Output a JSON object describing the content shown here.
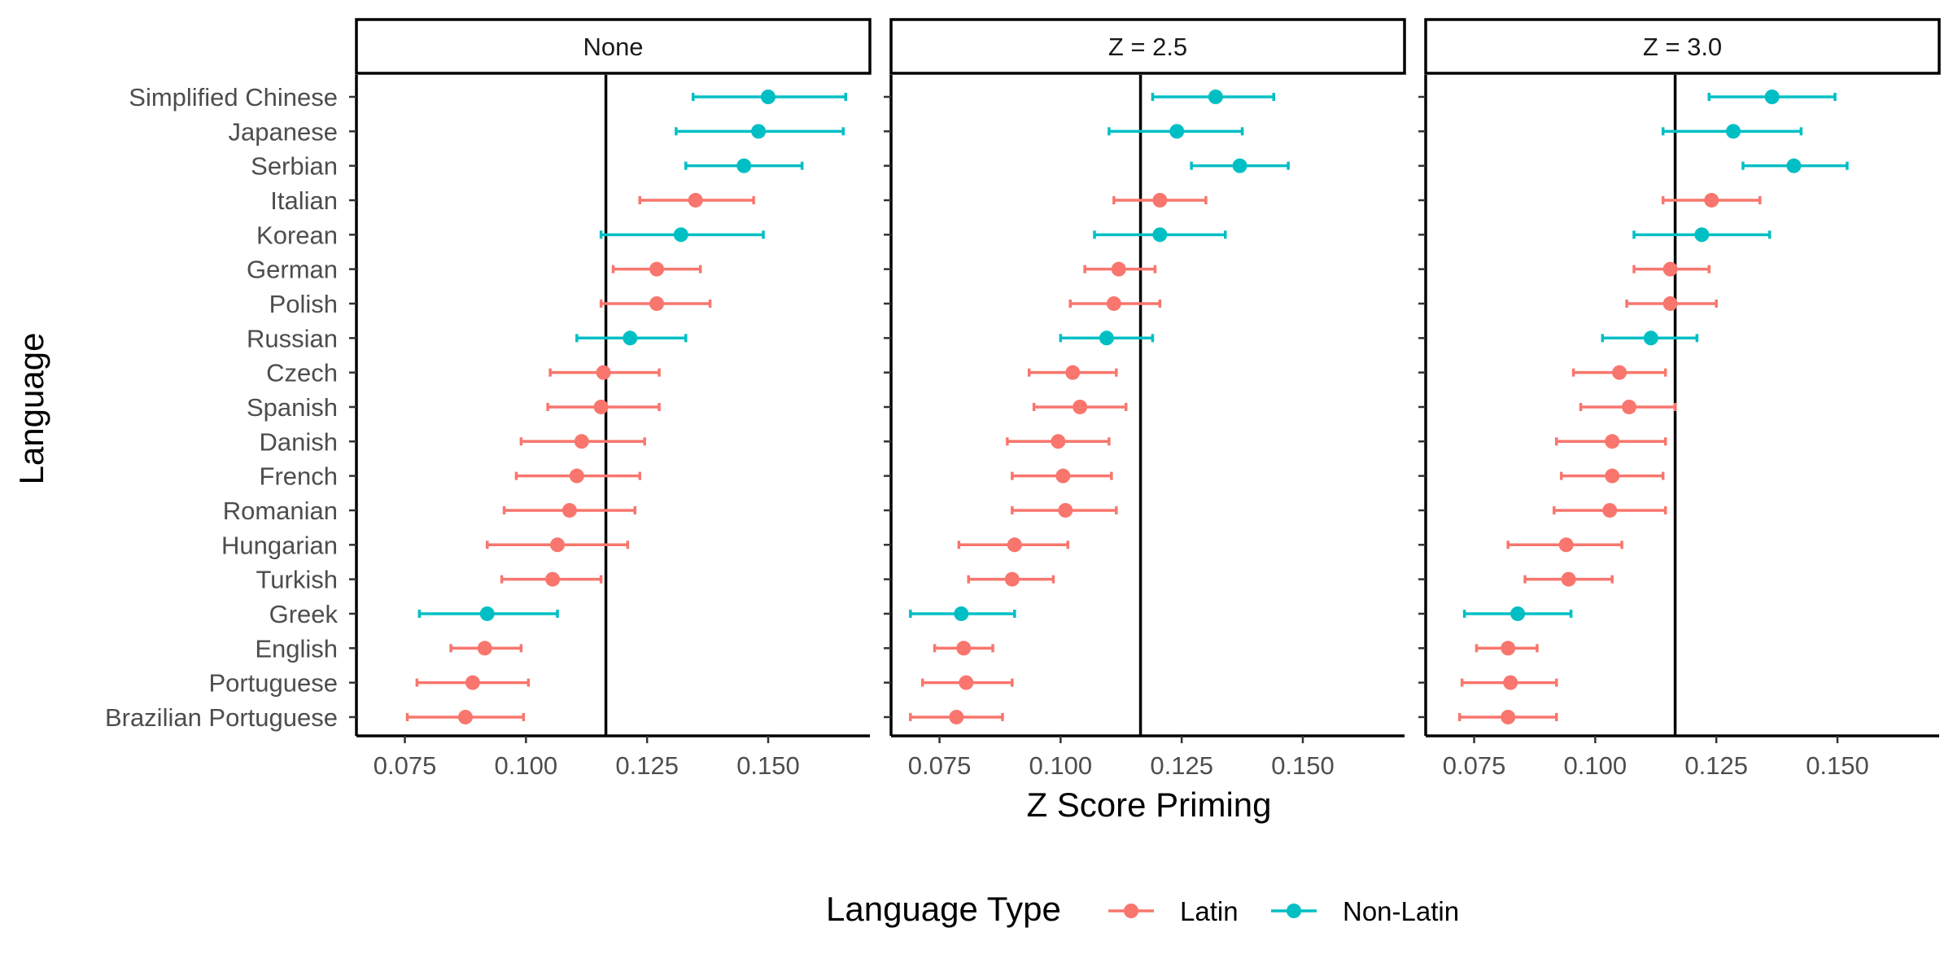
{
  "chart_data": {
    "type": "dot-errorbar",
    "facets": [
      "None",
      "Z = 2.5",
      "Z = 3.0"
    ],
    "ylabel": "Language",
    "xlabel": "Z Score Priming",
    "xlim": [
      0.065,
      0.171
    ],
    "xticks": [
      0.075,
      0.1,
      0.125,
      0.15
    ],
    "xtick_labels": [
      "0.075",
      "0.100",
      "0.125",
      "0.150"
    ],
    "reference_line": 0.1165,
    "legend": {
      "title": "Language Type",
      "placement": "bottom",
      "entries": [
        {
          "name": "Latin",
          "color": "#F8766D"
        },
        {
          "name": "Non-Latin",
          "color": "#00BFC4"
        }
      ]
    },
    "languages": [
      "Simplified Chinese",
      "Japanese",
      "Serbian",
      "Italian",
      "Korean",
      "German",
      "Polish",
      "Russian",
      "Czech",
      "Spanish",
      "Danish",
      "French",
      "Romanian",
      "Hungarian",
      "Turkish",
      "Greek",
      "English",
      "Portuguese",
      "Brazilian Portuguese"
    ],
    "types": [
      "Non-Latin",
      "Non-Latin",
      "Non-Latin",
      "Latin",
      "Non-Latin",
      "Latin",
      "Latin",
      "Non-Latin",
      "Latin",
      "Latin",
      "Latin",
      "Latin",
      "Latin",
      "Latin",
      "Latin",
      "Non-Latin",
      "Latin",
      "Latin",
      "Latin"
    ],
    "panels": [
      {
        "estimate": [
          0.15,
          0.148,
          0.145,
          0.135,
          0.132,
          0.127,
          0.127,
          0.1215,
          0.116,
          0.1155,
          0.1115,
          0.1105,
          0.109,
          0.1065,
          0.1055,
          0.092,
          0.0915,
          0.089,
          0.0875
        ],
        "lower": [
          0.1345,
          0.131,
          0.133,
          0.1235,
          0.1155,
          0.118,
          0.1155,
          0.1105,
          0.105,
          0.1045,
          0.099,
          0.098,
          0.0955,
          0.092,
          0.095,
          0.078,
          0.0845,
          0.0775,
          0.0755
        ],
        "upper": [
          0.166,
          0.1655,
          0.157,
          0.147,
          0.149,
          0.136,
          0.138,
          0.133,
          0.1275,
          0.1275,
          0.1245,
          0.1235,
          0.1225,
          0.121,
          0.1155,
          0.1065,
          0.099,
          0.1005,
          0.0995
        ]
      },
      {
        "estimate": [
          0.132,
          0.124,
          0.137,
          0.1205,
          0.1205,
          0.112,
          0.111,
          0.1095,
          0.1025,
          0.104,
          0.0995,
          0.1005,
          0.101,
          0.0905,
          0.09,
          0.0795,
          0.08,
          0.0805,
          0.0785
        ],
        "lower": [
          0.119,
          0.11,
          0.127,
          0.111,
          0.107,
          0.105,
          0.102,
          0.1,
          0.0935,
          0.0945,
          0.089,
          0.09,
          0.09,
          0.079,
          0.081,
          0.069,
          0.074,
          0.0715,
          0.069
        ],
        "upper": [
          0.144,
          0.1375,
          0.147,
          0.13,
          0.134,
          0.1195,
          0.1205,
          0.119,
          0.1115,
          0.1135,
          0.11,
          0.1105,
          0.1115,
          0.1015,
          0.0985,
          0.0905,
          0.086,
          0.09,
          0.088
        ]
      },
      {
        "estimate": [
          0.1365,
          0.1285,
          0.141,
          0.124,
          0.122,
          0.1155,
          0.1155,
          0.1115,
          0.105,
          0.107,
          0.1035,
          0.1035,
          0.103,
          0.094,
          0.0945,
          0.084,
          0.082,
          0.0825,
          0.082
        ],
        "lower": [
          0.1235,
          0.114,
          0.1305,
          0.114,
          0.108,
          0.108,
          0.1065,
          0.1015,
          0.0955,
          0.097,
          0.092,
          0.093,
          0.0915,
          0.082,
          0.0855,
          0.073,
          0.0755,
          0.0725,
          0.072
        ],
        "upper": [
          0.1495,
          0.1425,
          0.152,
          0.134,
          0.136,
          0.1235,
          0.125,
          0.121,
          0.1145,
          0.1165,
          0.1145,
          0.114,
          0.1145,
          0.1055,
          0.1035,
          0.095,
          0.088,
          0.092,
          0.092
        ]
      }
    ]
  }
}
